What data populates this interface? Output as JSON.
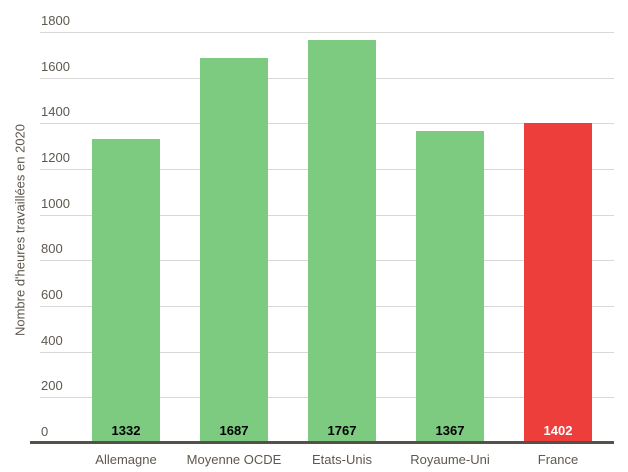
{
  "chart_data": {
    "type": "bar",
    "categories": [
      "Allemagne",
      "Moyenne OCDE",
      "Etats-Unis",
      "Royaume-Uni",
      "France"
    ],
    "values": [
      1332,
      1687,
      1767,
      1367,
      1402
    ],
    "value_labels": [
      "1332",
      "1687",
      "1767",
      "1367",
      "1402"
    ],
    "bar_colors": [
      "#7DCA81",
      "#7DCA81",
      "#7DCA81",
      "#7DCA81",
      "#EE3E3B"
    ],
    "value_label_colors": [
      "#000000",
      "#000000",
      "#000000",
      "#000000",
      "#FFFFFF"
    ],
    "title": "",
    "xlabel": "",
    "ylabel": "Nombre d'heures travaillées en 2020",
    "ylim": [
      0,
      1800
    ],
    "yticks": [
      0,
      200,
      400,
      600,
      800,
      1000,
      1200,
      1400,
      1600,
      1800
    ],
    "ytick_labels": [
      "0",
      "200",
      "400",
      "600",
      "800",
      "1000",
      "1200",
      "1400",
      "1600",
      "1800"
    ],
    "grid": true,
    "legend": false
  },
  "colors": {
    "green_bar": "#7DCA81",
    "red_bar": "#EE3E3B",
    "gridline": "#D8D8D8",
    "axis_line": "#54504A",
    "label_text": "#5E584E"
  }
}
